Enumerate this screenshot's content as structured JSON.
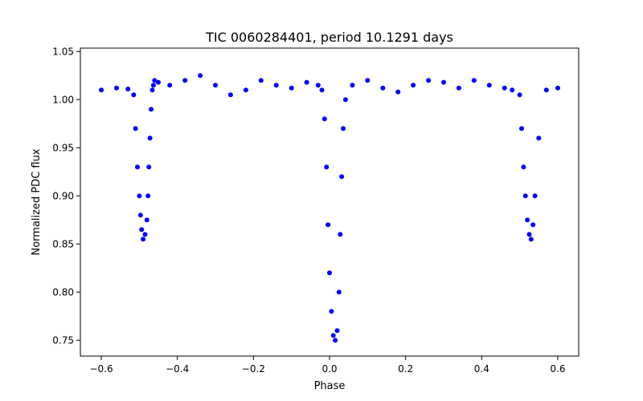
{
  "chart_data": {
    "type": "scatter",
    "title": "TIC 0060284401, period 10.1291 days",
    "xlabel": "Phase",
    "ylabel": "Normalized PDC flux",
    "xlim": [
      -0.655,
      0.655
    ],
    "ylim": [
      0.7335,
      1.0535
    ],
    "x_ticks": [
      -0.6,
      -0.4,
      -0.2,
      0.0,
      0.2,
      0.4,
      0.6
    ],
    "x_tick_labels": [
      "−0.6",
      "−0.4",
      "−0.2",
      "0.0",
      "0.2",
      "0.4",
      "0.6"
    ],
    "y_ticks": [
      0.75,
      0.8,
      0.85,
      0.9,
      0.95,
      1.0,
      1.05
    ],
    "y_tick_labels": [
      "0.75",
      "0.80",
      "0.85",
      "0.90",
      "0.95",
      "1.00",
      "1.05"
    ],
    "grid": false,
    "marker_color": "#0000ff",
    "series": [
      {
        "x": [
          -0.6,
          -0.56,
          -0.53,
          -0.515,
          -0.51,
          -0.505,
          -0.5,
          -0.497,
          -0.494,
          -0.49,
          -0.485,
          -0.48,
          -0.477,
          -0.475,
          -0.472,
          -0.469,
          -0.466,
          -0.463,
          -0.46,
          -0.45,
          -0.42,
          -0.38,
          -0.34,
          -0.3,
          -0.26,
          -0.22,
          -0.18,
          -0.14,
          -0.1,
          -0.06,
          -0.03,
          -0.02,
          -0.013,
          -0.008,
          -0.004,
          0.0,
          0.005,
          0.01,
          0.015,
          0.02,
          0.025,
          0.028,
          0.032,
          0.036,
          0.042,
          0.06,
          0.1,
          0.14,
          0.18,
          0.22,
          0.26,
          0.3,
          0.34,
          0.38,
          0.42,
          0.46,
          0.48,
          0.5,
          0.505,
          0.51,
          0.515,
          0.52,
          0.525,
          0.53,
          0.535,
          0.54,
          0.55,
          0.57,
          0.6
        ],
        "y": [
          1.01,
          1.012,
          1.011,
          1.005,
          0.97,
          0.93,
          0.9,
          0.88,
          0.865,
          0.855,
          0.86,
          0.875,
          0.9,
          0.93,
          0.96,
          0.99,
          1.01,
          1.015,
          1.02,
          1.018,
          1.015,
          1.02,
          1.025,
          1.015,
          1.005,
          1.01,
          1.02,
          1.015,
          1.012,
          1.018,
          1.015,
          1.01,
          0.98,
          0.93,
          0.87,
          0.82,
          0.78,
          0.755,
          0.75,
          0.76,
          0.8,
          0.86,
          0.92,
          0.97,
          1.0,
          1.015,
          1.02,
          1.012,
          1.008,
          1.015,
          1.02,
          1.018,
          1.012,
          1.02,
          1.015,
          1.012,
          1.01,
          1.005,
          0.97,
          0.93,
          0.9,
          0.875,
          0.86,
          0.855,
          0.87,
          0.9,
          0.96,
          1.01,
          1.012
        ]
      }
    ]
  }
}
